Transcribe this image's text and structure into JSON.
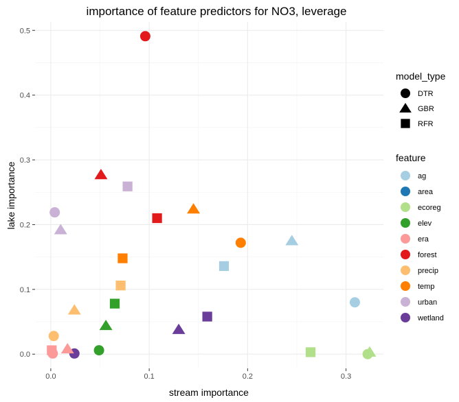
{
  "chart_data": {
    "type": "scatter",
    "title": "importance of feature predictors for NO3, leverage",
    "xlabel": "stream importance",
    "ylabel": "lake importance",
    "xlim": [
      -0.016,
      0.338
    ],
    "ylim": [
      -0.022,
      0.513
    ],
    "xticks": [
      0.0,
      0.1,
      0.2,
      0.3
    ],
    "xtick_labels": [
      "0.0",
      "0.1",
      "0.2",
      "0.3"
    ],
    "yticks": [
      0.0,
      0.1,
      0.2,
      0.3,
      0.4,
      0.5
    ],
    "ytick_labels": [
      "0.0",
      "0.1",
      "0.2",
      "0.3",
      "0.4",
      "0.5"
    ],
    "grid": true,
    "legend_position": "right",
    "legends": {
      "shape": {
        "title": "model_type",
        "items": [
          {
            "label": "DTR",
            "shape": "circle"
          },
          {
            "label": "GBR",
            "shape": "triangle"
          },
          {
            "label": "RFR",
            "shape": "square"
          }
        ]
      },
      "color": {
        "title": "feature",
        "items": [
          {
            "label": "ag",
            "color": "#a6cee3"
          },
          {
            "label": "area",
            "color": "#1f78b4"
          },
          {
            "label": "ecoreg",
            "color": "#b2df8a"
          },
          {
            "label": "elev",
            "color": "#33a02c"
          },
          {
            "label": "era",
            "color": "#fb9a99"
          },
          {
            "label": "forest",
            "color": "#e31a1c"
          },
          {
            "label": "precip",
            "color": "#fdbf6f"
          },
          {
            "label": "temp",
            "color": "#ff7f00"
          },
          {
            "label": "urban",
            "color": "#cab2d6"
          },
          {
            "label": "wetland",
            "color": "#6a3d9a"
          }
        ]
      }
    },
    "points": [
      {
        "x": 0.096,
        "y": 0.491,
        "feature": "forest",
        "model_type": "DTR"
      },
      {
        "x": 0.193,
        "y": 0.172,
        "feature": "temp",
        "model_type": "DTR"
      },
      {
        "x": 0.309,
        "y": 0.08,
        "feature": "ag",
        "model_type": "DTR"
      },
      {
        "x": 0.004,
        "y": 0.219,
        "feature": "urban",
        "model_type": "DTR"
      },
      {
        "x": 0.003,
        "y": 0.028,
        "feature": "precip",
        "model_type": "DTR"
      },
      {
        "x": 0.049,
        "y": 0.006,
        "feature": "elev",
        "model_type": "DTR"
      },
      {
        "x": 0.024,
        "y": 0.001,
        "feature": "wetland",
        "model_type": "DTR"
      },
      {
        "x": 0.002,
        "y": 0.001,
        "feature": "era",
        "model_type": "DTR"
      },
      {
        "x": 0.322,
        "y": 0.0,
        "feature": "ecoreg",
        "model_type": "DTR"
      },
      {
        "x": 0.051,
        "y": 0.277,
        "feature": "forest",
        "model_type": "GBR"
      },
      {
        "x": 0.145,
        "y": 0.224,
        "feature": "temp",
        "model_type": "GBR"
      },
      {
        "x": 0.245,
        "y": 0.175,
        "feature": "ag",
        "model_type": "GBR"
      },
      {
        "x": 0.01,
        "y": 0.192,
        "feature": "urban",
        "model_type": "GBR"
      },
      {
        "x": 0.024,
        "y": 0.068,
        "feature": "precip",
        "model_type": "GBR"
      },
      {
        "x": 0.056,
        "y": 0.044,
        "feature": "elev",
        "model_type": "GBR"
      },
      {
        "x": 0.13,
        "y": 0.038,
        "feature": "wetland",
        "model_type": "GBR"
      },
      {
        "x": 0.017,
        "y": 0.008,
        "feature": "era",
        "model_type": "GBR"
      },
      {
        "x": 0.324,
        "y": 0.003,
        "feature": "ecoreg",
        "model_type": "GBR"
      },
      {
        "x": 0.078,
        "y": 0.259,
        "feature": "urban",
        "model_type": "RFR"
      },
      {
        "x": 0.108,
        "y": 0.21,
        "feature": "forest",
        "model_type": "RFR"
      },
      {
        "x": 0.073,
        "y": 0.148,
        "feature": "temp",
        "model_type": "RFR"
      },
      {
        "x": 0.176,
        "y": 0.136,
        "feature": "ag",
        "model_type": "RFR"
      },
      {
        "x": 0.071,
        "y": 0.106,
        "feature": "precip",
        "model_type": "RFR"
      },
      {
        "x": 0.065,
        "y": 0.078,
        "feature": "elev",
        "model_type": "RFR"
      },
      {
        "x": 0.159,
        "y": 0.058,
        "feature": "wetland",
        "model_type": "RFR"
      },
      {
        "x": 0.264,
        "y": 0.003,
        "feature": "ecoreg",
        "model_type": "RFR"
      },
      {
        "x": 0.001,
        "y": 0.006,
        "feature": "era",
        "model_type": "RFR"
      }
    ]
  }
}
